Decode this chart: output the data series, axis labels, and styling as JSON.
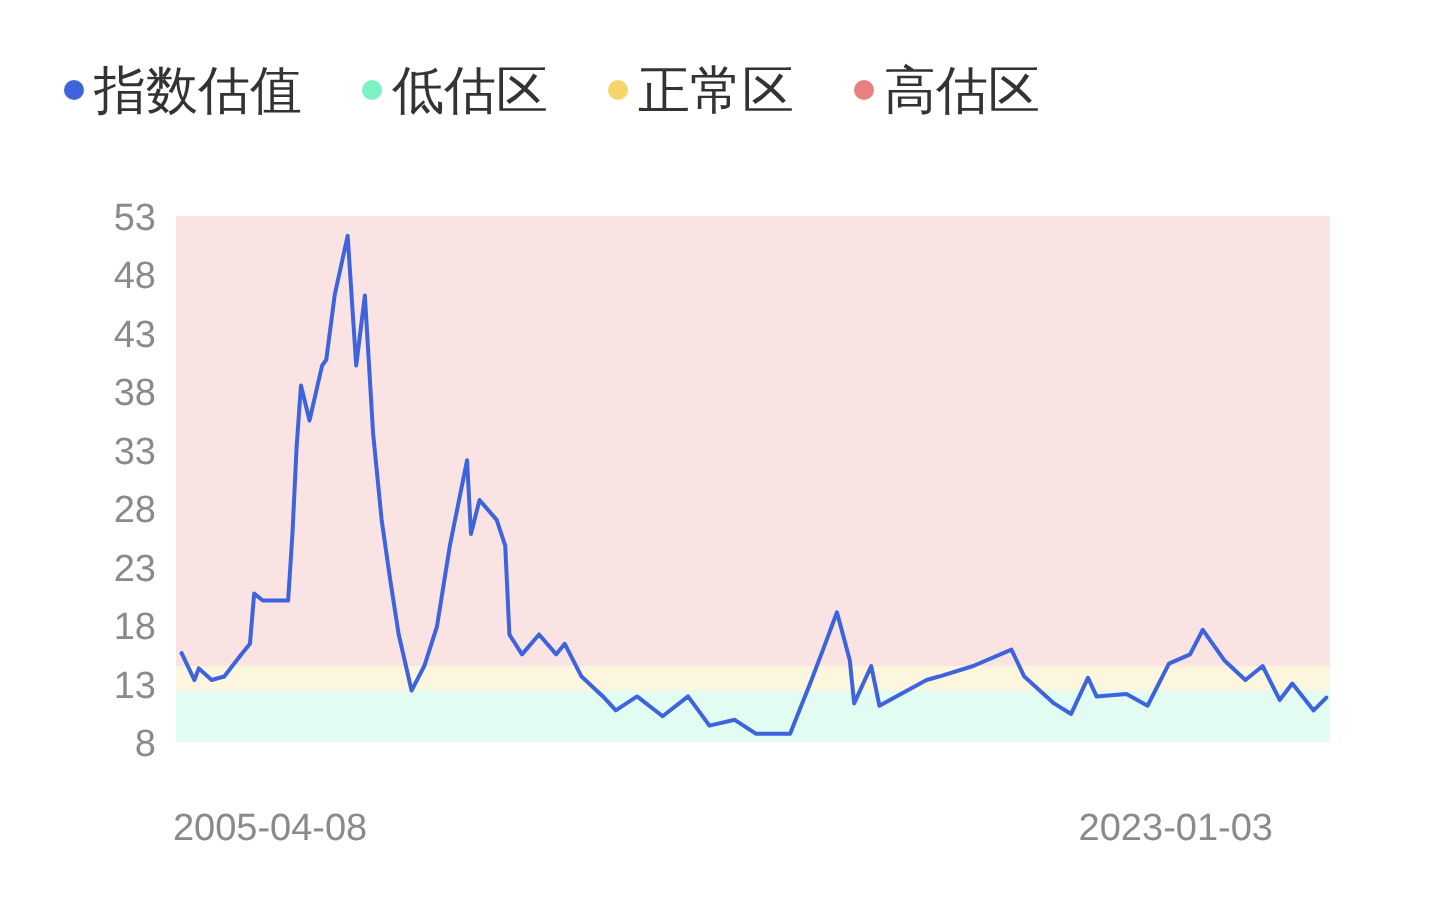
{
  "chart_data": {
    "type": "line",
    "legend": "top",
    "grid": false,
    "marker": "none",
    "line_style": "solid",
    "xlim": [
      "2003-06-05",
      "2026-01-10"
    ],
    "xticks": [
      "2005-04-08",
      "2023-01-03"
    ],
    "ylim": [
      8,
      53
    ],
    "yticks": [
      8,
      13,
      18,
      23,
      28,
      33,
      38,
      43,
      48,
      53
    ],
    "series": [
      {
        "name": "指数估值",
        "color": "#3d63dd",
        "x": [
          "2003-07",
          "2003-10",
          "2003-11",
          "2004-02",
          "2004-05",
          "2004-09",
          "2004-11",
          "2004-12",
          "2005-02",
          "2005-08",
          "2005-09",
          "2005-10",
          "2005-11",
          "2006-01",
          "2006-04",
          "2006-05",
          "2006-07",
          "2006-10",
          "2006-12",
          "2007-02",
          "2007-04",
          "2007-06",
          "2007-08",
          "2007-10",
          "2008-01",
          "2008-04",
          "2008-07",
          "2008-10",
          "2009-02",
          "2009-03",
          "2009-05",
          "2009-09",
          "2009-11",
          "2009-12",
          "2010-03",
          "2010-07",
          "2010-11",
          "2011-01",
          "2011-05",
          "2011-10",
          "2012-01",
          "2012-06",
          "2012-12",
          "2013-06",
          "2013-11",
          "2014-05",
          "2014-10",
          "2015-06",
          "2015-11",
          "2016-02",
          "2016-05",
          "2016-08",
          "2016-09",
          "2017-01",
          "2017-03",
          "2017-08",
          "2018-02",
          "2018-05",
          "2019-01",
          "2019-10",
          "2020-01",
          "2020-08",
          "2020-12",
          "2021-04",
          "2021-06",
          "2022-01",
          "2022-06",
          "2022-11",
          "2023-04",
          "2023-07",
          "2023-12",
          "2024-05",
          "2024-09",
          "2025-01",
          "2025-04",
          "2025-09",
          "2025-12"
        ],
        "values": [
          15.6,
          13.3,
          14.3,
          13.3,
          13.6,
          15.5,
          16.4,
          20.7,
          20.1,
          20.1,
          25.8,
          33.3,
          38.5,
          35.5,
          40.2,
          40.7,
          46.3,
          51.3,
          40.2,
          46.2,
          34.4,
          27.0,
          21.9,
          17.2,
          12.4,
          14.5,
          17.9,
          24.8,
          32.1,
          25.8,
          28.7,
          27.0,
          24.8,
          17.2,
          15.5,
          17.2,
          15.5,
          16.4,
          13.6,
          11.9,
          10.7,
          11.9,
          10.2,
          11.9,
          9.4,
          9.9,
          8.7,
          8.7,
          13.3,
          16.2,
          19.1,
          15.0,
          11.3,
          14.5,
          11.1,
          12.1,
          13.3,
          13.6,
          14.5,
          15.9,
          13.6,
          11.3,
          10.4,
          13.5,
          11.9,
          12.1,
          11.1,
          14.7,
          15.5,
          17.6,
          15.0,
          13.3,
          14.5,
          11.6,
          13.0,
          10.7,
          11.8
        ]
      }
    ],
    "bands": [
      {
        "axis": "y",
        "from": 8,
        "to": 12.4,
        "label": "低估区",
        "color": "#7df0c4"
      },
      {
        "axis": "y",
        "from": 12.4,
        "to": 14.5,
        "label": "正常区",
        "color": "#f5d46a"
      },
      {
        "axis": "y",
        "from": 14.5,
        "to": 53,
        "label": "高估区",
        "color": "#e88080"
      }
    ]
  }
}
